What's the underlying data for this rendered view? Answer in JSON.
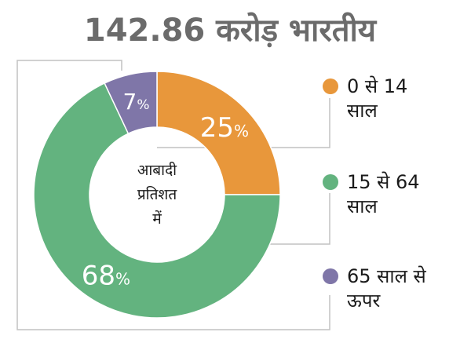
{
  "title": "142.86 करोड़ भारतीय",
  "chart_data": {
    "type": "pie",
    "title": "142.86 करोड़ भारतीय",
    "center_label": [
      "आबादी",
      "प्रतिशत",
      "में"
    ],
    "slices": [
      {
        "label_lines": [
          "0 से 14",
          "साल"
        ],
        "value": 25,
        "display": "25",
        "color": "#e8973b"
      },
      {
        "label_lines": [
          "15 से 64",
          "साल"
        ],
        "value": 68,
        "display": "68",
        "color": "#63b37f"
      },
      {
        "label_lines": [
          "65 साल से",
          "ऊपर"
        ],
        "value": 7,
        "display": "7",
        "color": "#7f76a8"
      }
    ],
    "percent_symbol": "%",
    "connector_color": "#c2c2c2"
  }
}
